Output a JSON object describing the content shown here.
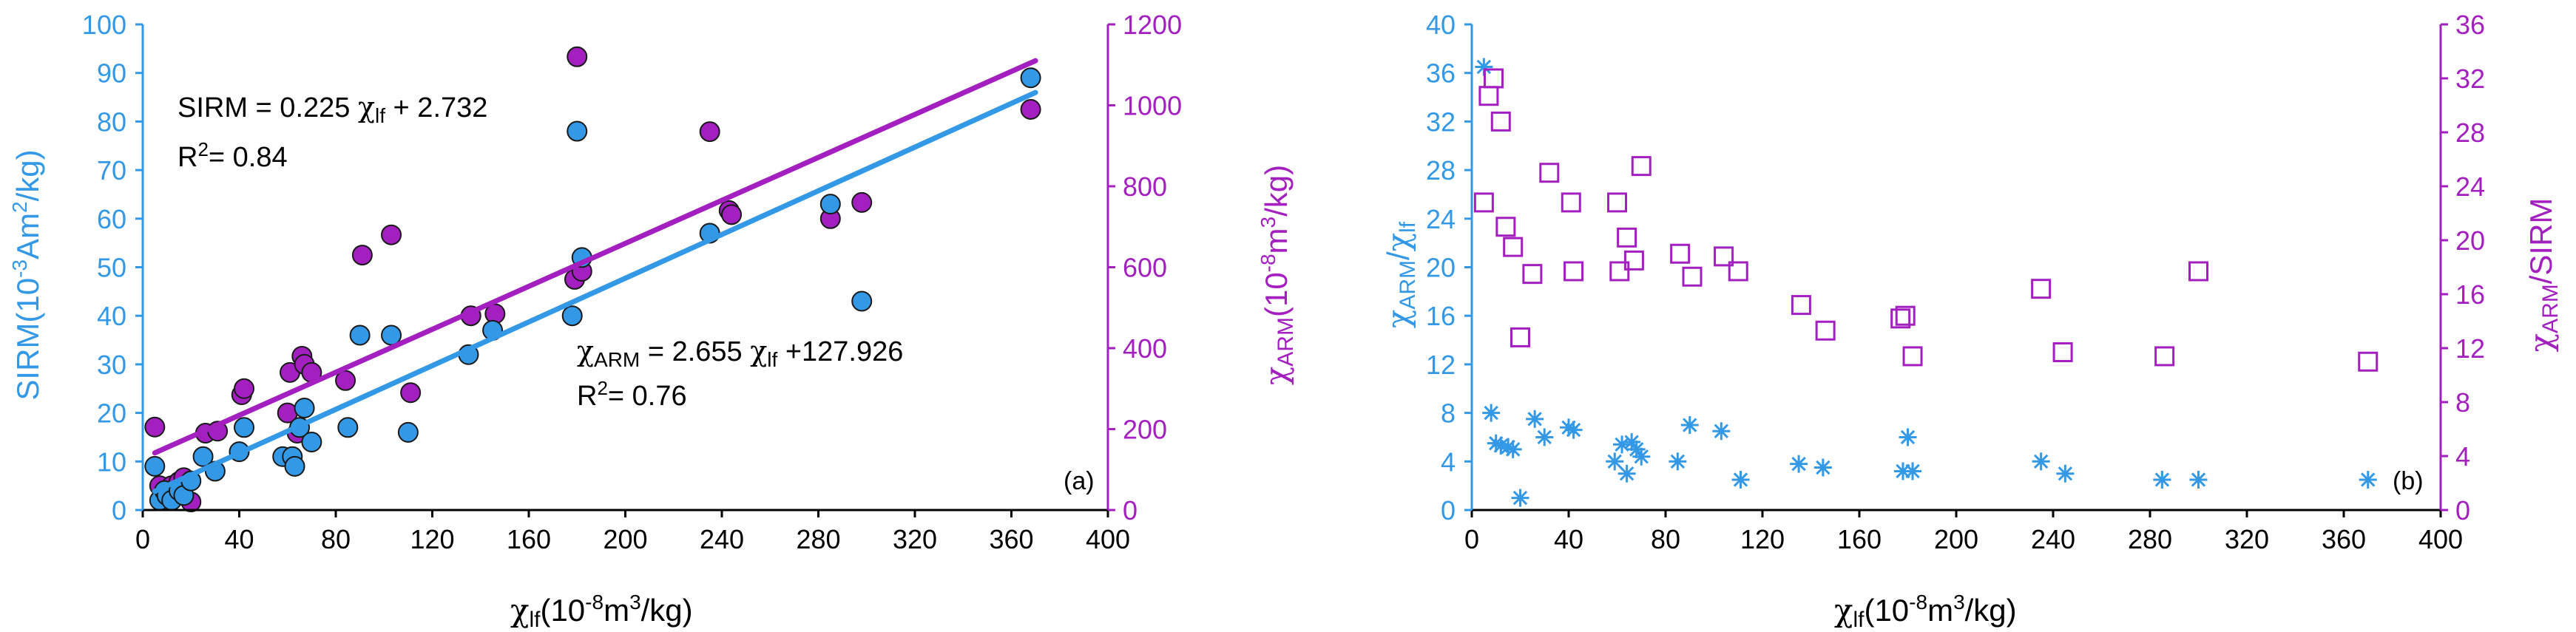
{
  "colors": {
    "blue": "#3399e6",
    "purple": "#a31fbf",
    "axis": "#000000",
    "marker_edge": "#1a1a1a"
  },
  "chart_data": [
    {
      "panel": "(a)",
      "type": "scatter",
      "xlabel": {
        "base": "χ",
        "sub": "lf",
        "unit_pre": "(10",
        "unit_sup": "-8",
        "unit_mid": "m",
        "unit_sup2": "3",
        "unit_post": "/kg)"
      },
      "ylabel_left": {
        "pre": "SIRM(10",
        "sup1": "-3",
        "mid": "Am",
        "sup2": "2",
        "post": "/kg)"
      },
      "ylabel_right": {
        "base": "χ",
        "sub": "ARM",
        "pre": "(10",
        "sup1": "-8",
        "mid": "m",
        "sup2": "3",
        "post": "/kg)"
      },
      "xlim": [
        0,
        400
      ],
      "ylim_left": [
        0,
        100
      ],
      "ylim_right": [
        0,
        1200
      ],
      "xticks": [
        "0",
        "40",
        "80",
        "120",
        "160",
        "200",
        "240",
        "280",
        "320",
        "360",
        "400"
      ],
      "yticks_left": [
        "0",
        "10",
        "20",
        "30",
        "40",
        "50",
        "60",
        "70",
        "80",
        "90",
        "100"
      ],
      "yticks_right": [
        "0",
        "200",
        "400",
        "600",
        "800",
        "1000",
        "1200"
      ],
      "eq1": {
        "pre": "SIRM = 0.225 ",
        "chi": "χ",
        "sub": "lf",
        "post": " + 2.732"
      },
      "r2_1": {
        "pre": "R",
        "sup": "2",
        "post": "= 0.84"
      },
      "eq2": {
        "chi": "χ",
        "sub": "ARM",
        "mid": " = 2.655 ",
        "chi2": "χ",
        "sub2": "lf",
        "post": " +127.926"
      },
      "r2_2": {
        "pre": "R",
        "sup": "2",
        "post": "= 0.76"
      },
      "series": [
        {
          "name": "SIRM",
          "axis": "left",
          "color": "blue",
          "marker": "circle",
          "fit": {
            "slope": 0.225,
            "intercept": 2.732,
            "x_range": [
              5,
              370
            ]
          },
          "points": [
            [
              5,
              9
            ],
            [
              7,
              2
            ],
            [
              9,
              4
            ],
            [
              10,
              3
            ],
            [
              12,
              2
            ],
            [
              15,
              4
            ],
            [
              17,
              3
            ],
            [
              20,
              6
            ],
            [
              25,
              11
            ],
            [
              30,
              8
            ],
            [
              40,
              12
            ],
            [
              42,
              17
            ],
            [
              58,
              11
            ],
            [
              62,
              11
            ],
            [
              63,
              9
            ],
            [
              65,
              17
            ],
            [
              67,
              21
            ],
            [
              70,
              14
            ],
            [
              85,
              17
            ],
            [
              90,
              36
            ],
            [
              103,
              36
            ],
            [
              110,
              16
            ],
            [
              135,
              32
            ],
            [
              145,
              37
            ],
            [
              178,
              40
            ],
            [
              180,
              78
            ],
            [
              182,
              52
            ],
            [
              235,
              57
            ],
            [
              285,
              63
            ],
            [
              298,
              43
            ],
            [
              368,
              89
            ]
          ]
        },
        {
          "name": "χARM",
          "axis": "right",
          "color": "purple",
          "marker": "circle",
          "fit": {
            "slope": 2.655,
            "intercept": 127.926,
            "x_range": [
              5,
              370
            ]
          },
          "points": [
            [
              5,
              205
            ],
            [
              7,
              60
            ],
            [
              9,
              45
            ],
            [
              10,
              40
            ],
            [
              12,
              60
            ],
            [
              15,
              70
            ],
            [
              17,
              80
            ],
            [
              20,
              20
            ],
            [
              26,
              190
            ],
            [
              31,
              195
            ],
            [
              41,
              285
            ],
            [
              42,
              300
            ],
            [
              60,
              240
            ],
            [
              61,
              340
            ],
            [
              64,
              190
            ],
            [
              66,
              380
            ],
            [
              67,
              360
            ],
            [
              70,
              340
            ],
            [
              84,
              320
            ],
            [
              91,
              630
            ],
            [
              103,
              680
            ],
            [
              111,
              290
            ],
            [
              136,
              480
            ],
            [
              146,
              485
            ],
            [
              179,
              570
            ],
            [
              180,
              1120
            ],
            [
              182,
              590
            ],
            [
              235,
              935
            ],
            [
              243,
              740
            ],
            [
              244,
              730
            ],
            [
              285,
              720
            ],
            [
              298,
              760
            ],
            [
              368,
              990
            ]
          ]
        }
      ]
    },
    {
      "panel": "(b)",
      "type": "scatter",
      "xlabel": {
        "base": "χ",
        "sub": "lf",
        "unit_pre": "(10",
        "unit_sup": "-8",
        "unit_mid": "m",
        "unit_sup2": "3",
        "unit_post": "/kg)"
      },
      "ylabel_left": {
        "base": "χ",
        "sub": "ARM",
        "mid": "/",
        "base2": "χ",
        "sub2": "lf"
      },
      "ylabel_right": {
        "base": "χ",
        "sub": "ARM",
        "post": "/SIRM"
      },
      "xlim": [
        0,
        400
      ],
      "ylim_left": [
        0,
        40
      ],
      "ylim_right": [
        0,
        36
      ],
      "xticks": [
        "0",
        "40",
        "80",
        "120",
        "160",
        "200",
        "240",
        "280",
        "320",
        "360",
        "400"
      ],
      "yticks_left": [
        "0",
        "4",
        "8",
        "12",
        "16",
        "20",
        "24",
        "28",
        "32",
        "36",
        "40"
      ],
      "yticks_right": [
        "0",
        "4",
        "8",
        "12",
        "16",
        "20",
        "24",
        "28",
        "32",
        "36"
      ],
      "series": [
        {
          "name": "χARM/χlf",
          "axis": "left",
          "color": "blue",
          "marker": "asterisk",
          "points": [
            [
              5,
              36.5
            ],
            [
              8,
              8
            ],
            [
              10,
              5.5
            ],
            [
              12,
              5.3
            ],
            [
              15,
              5.2
            ],
            [
              17,
              5.0
            ],
            [
              20,
              1
            ],
            [
              26,
              7.5
            ],
            [
              30,
              6
            ],
            [
              40,
              6.8
            ],
            [
              42,
              6.6
            ],
            [
              59,
              4
            ],
            [
              62,
              5.4
            ],
            [
              64,
              3
            ],
            [
              66,
              5.6
            ],
            [
              68,
              5
            ],
            [
              70,
              4.4
            ],
            [
              85,
              4
            ],
            [
              90,
              7
            ],
            [
              103,
              6.5
            ],
            [
              111,
              2.5
            ],
            [
              135,
              3.8
            ],
            [
              145,
              3.5
            ],
            [
              178,
              3.2
            ],
            [
              180,
              6
            ],
            [
              182,
              3.2
            ],
            [
              235,
              4
            ],
            [
              245,
              3
            ],
            [
              285,
              2.5
            ],
            [
              300,
              2.5
            ],
            [
              370,
              2.5
            ]
          ]
        },
        {
          "name": "χARM/SIRM",
          "axis": "right",
          "color": "purple",
          "marker": "square",
          "points": [
            [
              5,
              22.8
            ],
            [
              7,
              30.7
            ],
            [
              9,
              32
            ],
            [
              12,
              28.8
            ],
            [
              14,
              21
            ],
            [
              17,
              19.5
            ],
            [
              20,
              12.8
            ],
            [
              25,
              17.5
            ],
            [
              32,
              25
            ],
            [
              41,
              22.8
            ],
            [
              42,
              17.7
            ],
            [
              60,
              22.8
            ],
            [
              61,
              17.7
            ],
            [
              64,
              20.2
            ],
            [
              67,
              18.5
            ],
            [
              70,
              25.5
            ],
            [
              86,
              19
            ],
            [
              91,
              17.3
            ],
            [
              104,
              18.8
            ],
            [
              110,
              17.7
            ],
            [
              136,
              15.2
            ],
            [
              146,
              13.3
            ],
            [
              177,
              14.2
            ],
            [
              179,
              14.4
            ],
            [
              182,
              11.4
            ],
            [
              235,
              16.4
            ],
            [
              244,
              11.7
            ],
            [
              286,
              11.4
            ],
            [
              300,
              17.7
            ],
            [
              370,
              11
            ]
          ]
        }
      ]
    }
  ]
}
